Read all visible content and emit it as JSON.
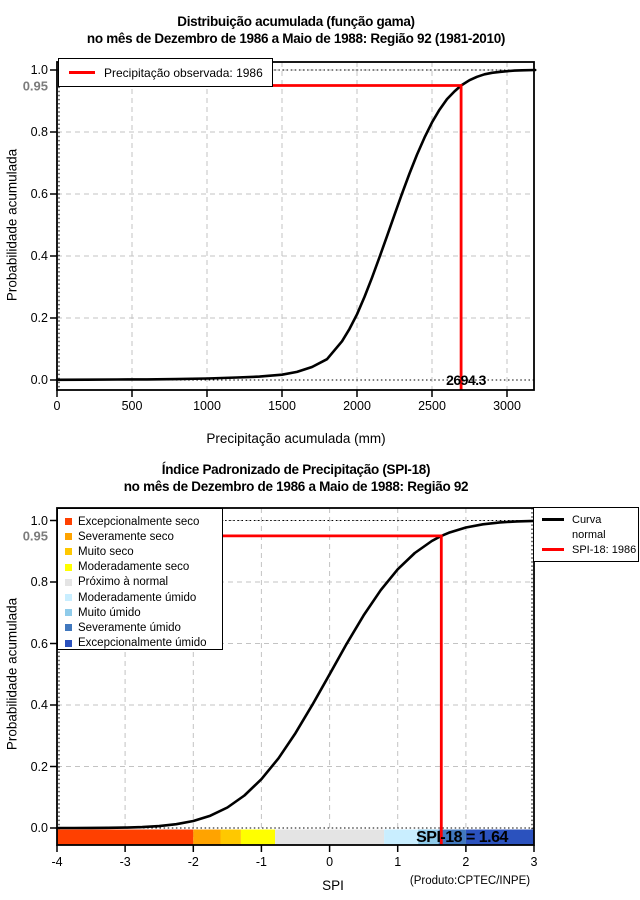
{
  "chart_data": [
    {
      "type": "line",
      "title": "Distribuição acumulada (função gama)",
      "subtitle": "no mês de Dezembro de 1986 a Maio de 1988: Região 92 (1981-2010)",
      "xlabel": "Precipitação acumulada (mm)",
      "ylabel": "Probabilidade acumulada",
      "xlim": [
        0,
        3188
      ],
      "ylim": [
        0,
        1.0
      ],
      "x_ticks": [
        0,
        500,
        1000,
        1500,
        2000,
        2500,
        3000
      ],
      "y_ticks": [
        0.0,
        0.2,
        0.4,
        0.6,
        0.8,
        1.0
      ],
      "grid": "dashed-gray",
      "legend_position": "top-left",
      "legend": [
        {
          "label": "Precipitação observada: 1986",
          "color": "#FF0000"
        }
      ],
      "highlight": {
        "prob": 0.95,
        "prob_label": "0.95",
        "x_value": 2694.3,
        "x_label": "2694.3",
        "color": "#FF0000"
      },
      "series": [
        {
          "name": "Distribuição acumulada (função gama)",
          "color": "#000000",
          "points": [
            [
              0,
              0.0005
            ],
            [
              200,
              0.001
            ],
            [
              400,
              0.0015
            ],
            [
              600,
              0.002
            ],
            [
              800,
              0.003
            ],
            [
              1000,
              0.005
            ],
            [
              1200,
              0.008
            ],
            [
              1350,
              0.011
            ],
            [
              1500,
              0.017
            ],
            [
              1600,
              0.026
            ],
            [
              1700,
              0.042
            ],
            [
              1800,
              0.067
            ],
            [
              1900,
              0.125
            ],
            [
              1950,
              0.165
            ],
            [
              2000,
              0.212
            ],
            [
              2050,
              0.268
            ],
            [
              2100,
              0.33
            ],
            [
              2150,
              0.396
            ],
            [
              2200,
              0.464
            ],
            [
              2250,
              0.533
            ],
            [
              2300,
              0.601
            ],
            [
              2350,
              0.666
            ],
            [
              2400,
              0.727
            ],
            [
              2450,
              0.782
            ],
            [
              2500,
              0.831
            ],
            [
              2550,
              0.872
            ],
            [
              2600,
              0.906
            ],
            [
              2650,
              0.931
            ],
            [
              2694.3,
              0.95
            ],
            [
              2750,
              0.967
            ],
            [
              2800,
              0.978
            ],
            [
              2850,
              0.986
            ],
            [
              2900,
              0.991
            ],
            [
              2950,
              0.994
            ],
            [
              3000,
              0.996
            ],
            [
              3050,
              0.998
            ],
            [
              3100,
              0.999
            ],
            [
              3188,
              1.0
            ]
          ]
        }
      ]
    },
    {
      "type": "line",
      "title": "Índice Padronizado de Precipitação (SPI-18)",
      "subtitle": "no mês de Dezembro de 1986 a Maio de 1988: Região 92",
      "xlabel": "SPI",
      "ylabel": "Probabilidade acumulada",
      "xlim": [
        -4,
        3
      ],
      "ylim": [
        0,
        1.0
      ],
      "x_ticks": [
        -4,
        -3,
        -2,
        -1,
        0,
        1,
        2,
        3
      ],
      "y_ticks": [
        0.0,
        0.2,
        0.4,
        0.6,
        0.8,
        1.0
      ],
      "grid": "dashed-gray",
      "legend_right": [
        {
          "label_lines": [
            "Curva",
            "normal"
          ],
          "color": "#000000"
        },
        {
          "label_lines": [
            "SPI-18: 1986"
          ],
          "color": "#FF0000"
        }
      ],
      "categories": [
        {
          "label": "Excepcionalmente seco",
          "color": "#FF4000",
          "from": -4,
          "to": -2
        },
        {
          "label": "Severamente seco",
          "color": "#FFA300",
          "from": -2,
          "to": -1.6
        },
        {
          "label": "Muito seco",
          "color": "#FFC800",
          "from": -1.6,
          "to": -1.3
        },
        {
          "label": "Moderadamente seco",
          "color": "#FFFF00",
          "from": -1.3,
          "to": -0.8
        },
        {
          "label": "Próximo à normal",
          "color": "#E4E4E4",
          "from": -0.8,
          "to": 0.8
        },
        {
          "label": "Moderadamente úmido",
          "color": "#C9EEFF",
          "from": 0.8,
          "to": 1.3
        },
        {
          "label": "Muito úmido",
          "color": "#8FCBEA",
          "from": 1.3,
          "to": 1.6
        },
        {
          "label": "Severamente úmido",
          "color": "#4178BE",
          "from": 1.6,
          "to": 2
        },
        {
          "label": "Excepcionalmente úmido",
          "color": "#2B52BE",
          "from": 2,
          "to": 3
        }
      ],
      "highlight": {
        "prob": 0.95,
        "prob_label": "0.95",
        "x_value": 1.64,
        "x_label": "SPI-18 = 1.64",
        "color": "#FF0000"
      },
      "footer": "(Produto:CPTEC/INPE)",
      "series": [
        {
          "name": "Curva normal",
          "color": "#000000",
          "points": [
            [
              -4,
              0.0
            ],
            [
              -3.75,
              0.0001
            ],
            [
              -3.5,
              0.0002
            ],
            [
              -3.25,
              0.0006
            ],
            [
              -3,
              0.0013
            ],
            [
              -2.75,
              0.003
            ],
            [
              -2.5,
              0.0062
            ],
            [
              -2.25,
              0.0122
            ],
            [
              -2,
              0.0228
            ],
            [
              -1.75,
              0.0401
            ],
            [
              -1.5,
              0.0668
            ],
            [
              -1.25,
              0.1056
            ],
            [
              -1,
              0.1587
            ],
            [
              -0.75,
              0.2266
            ],
            [
              -0.5,
              0.3085
            ],
            [
              -0.25,
              0.4013
            ],
            [
              0,
              0.5
            ],
            [
              0.25,
              0.5987
            ],
            [
              0.5,
              0.6915
            ],
            [
              0.75,
              0.7734
            ],
            [
              1,
              0.8413
            ],
            [
              1.25,
              0.8944
            ],
            [
              1.5,
              0.9332
            ],
            [
              1.64,
              0.95
            ],
            [
              1.75,
              0.9599
            ],
            [
              2,
              0.9772
            ],
            [
              2.25,
              0.9878
            ],
            [
              2.5,
              0.9938
            ],
            [
              2.75,
              0.997
            ],
            [
              3,
              0.9987
            ]
          ]
        }
      ]
    }
  ]
}
